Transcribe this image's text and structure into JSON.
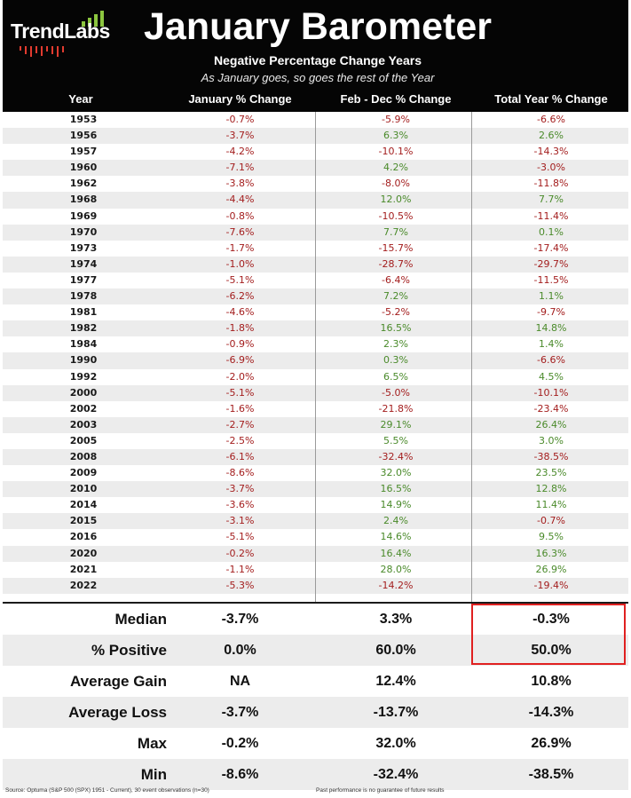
{
  "brand": {
    "logo_text": "TrendLabs",
    "accent_green": "#8cc63f",
    "accent_red": "#e23b2f"
  },
  "header": {
    "title": "January Barometer",
    "subtitle": "Negative Percentage Change Years",
    "tagline": "As January goes, so goes the rest of the Year"
  },
  "colors": {
    "negative": "#a31d1d",
    "positive": "#4a8a2a",
    "highlight_border": "#e02020"
  },
  "chart_data": {
    "type": "table",
    "title": "January Barometer",
    "subtitle": "Negative Percentage Change Years",
    "columns": [
      "Year",
      "January % Change",
      "Feb - Dec % Change",
      "Total Year % Change"
    ],
    "rows": [
      [
        "1953",
        "-0.7%",
        "-5.9%",
        "-6.6%"
      ],
      [
        "1956",
        "-3.7%",
        "6.3%",
        "2.6%"
      ],
      [
        "1957",
        "-4.2%",
        "-10.1%",
        "-14.3%"
      ],
      [
        "1960",
        "-7.1%",
        "4.2%",
        "-3.0%"
      ],
      [
        "1962",
        "-3.8%",
        "-8.0%",
        "-11.8%"
      ],
      [
        "1968",
        "-4.4%",
        "12.0%",
        "7.7%"
      ],
      [
        "1969",
        "-0.8%",
        "-10.5%",
        "-11.4%"
      ],
      [
        "1970",
        "-7.6%",
        "7.7%",
        "0.1%"
      ],
      [
        "1973",
        "-1.7%",
        "-15.7%",
        "-17.4%"
      ],
      [
        "1974",
        "-1.0%",
        "-28.7%",
        "-29.7%"
      ],
      [
        "1977",
        "-5.1%",
        "-6.4%",
        "-11.5%"
      ],
      [
        "1978",
        "-6.2%",
        "7.2%",
        "1.1%"
      ],
      [
        "1981",
        "-4.6%",
        "-5.2%",
        "-9.7%"
      ],
      [
        "1982",
        "-1.8%",
        "16.5%",
        "14.8%"
      ],
      [
        "1984",
        "-0.9%",
        "2.3%",
        "1.4%"
      ],
      [
        "1990",
        "-6.9%",
        "0.3%",
        "-6.6%"
      ],
      [
        "1992",
        "-2.0%",
        "6.5%",
        "4.5%"
      ],
      [
        "2000",
        "-5.1%",
        "-5.0%",
        "-10.1%"
      ],
      [
        "2002",
        "-1.6%",
        "-21.8%",
        "-23.4%"
      ],
      [
        "2003",
        "-2.7%",
        "29.1%",
        "26.4%"
      ],
      [
        "2005",
        "-2.5%",
        "5.5%",
        "3.0%"
      ],
      [
        "2008",
        "-6.1%",
        "-32.4%",
        "-38.5%"
      ],
      [
        "2009",
        "-8.6%",
        "32.0%",
        "23.5%"
      ],
      [
        "2010",
        "-3.7%",
        "16.5%",
        "12.8%"
      ],
      [
        "2014",
        "-3.6%",
        "14.9%",
        "11.4%"
      ],
      [
        "2015",
        "-3.1%",
        "2.4%",
        "-0.7%"
      ],
      [
        "2016",
        "-5.1%",
        "14.6%",
        "9.5%"
      ],
      [
        "2020",
        "-0.2%",
        "16.4%",
        "16.3%"
      ],
      [
        "2021",
        "-1.1%",
        "28.0%",
        "26.9%"
      ],
      [
        "2022",
        "-5.3%",
        "-14.2%",
        "-19.4%"
      ]
    ],
    "summary": [
      [
        "Median",
        "-3.7%",
        "3.3%",
        "-0.3%"
      ],
      [
        "% Positive",
        "0.0%",
        "60.0%",
        "50.0%"
      ],
      [
        "Average Gain",
        "NA",
        "12.4%",
        "10.8%"
      ],
      [
        "Average Loss",
        "-3.7%",
        "-13.7%",
        "-14.3%"
      ],
      [
        "Max",
        "-0.2%",
        "32.0%",
        "26.9%"
      ],
      [
        "Min",
        "-8.6%",
        "-32.4%",
        "-38.5%"
      ]
    ],
    "highlighted": [
      "Median",
      "% Positive"
    ],
    "highlighted_column": "Total Year % Change"
  },
  "footer": {
    "source": "Source: Optuma (S&P 500 (SPX) 1951 - Current), 30 event observations (n=30)",
    "disclaimer": "Past performance is no guarantee of future results"
  }
}
